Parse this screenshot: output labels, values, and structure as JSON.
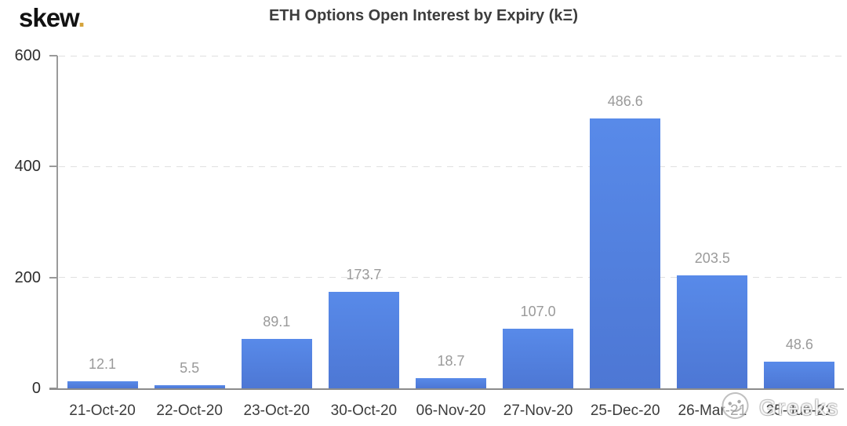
{
  "logo": {
    "brand": "skew",
    "dot": "."
  },
  "header": {
    "title": "ETH Options Open Interest by Expiry (kΞ)"
  },
  "watermark": {
    "label": "Greeks",
    "emoji": "smiley-face"
  },
  "colors": {
    "bar_gradient_top": "#588ae9",
    "bar_gradient_bottom": "#4d77d4",
    "logo_dot": "#d5a43c",
    "value_label": "#9a9a9a",
    "axis_line": "#909090",
    "tick_text": "#2e2e2e",
    "category_text": "#3c3c3c",
    "gridline": "#e2e2e2",
    "title_text": "#3d3d3d"
  },
  "chart_data": {
    "type": "bar",
    "title": "ETH Options Open Interest by Expiry (kΞ)",
    "categories": [
      "21-Oct-20",
      "22-Oct-20",
      "23-Oct-20",
      "30-Oct-20",
      "06-Nov-20",
      "27-Nov-20",
      "25-Dec-20",
      "26-Mar-21",
      "25-Jun-21"
    ],
    "values": [
      12.1,
      5.5,
      89.1,
      173.7,
      18.7,
      107.0,
      486.6,
      203.5,
      48.6
    ],
    "value_label_format": "one-decimal",
    "xlabel": "",
    "ylabel": "",
    "ylim": [
      0,
      600
    ],
    "yticks": [
      0,
      200,
      400,
      600
    ],
    "grid": "horizontal-dashed",
    "legend": "none"
  }
}
